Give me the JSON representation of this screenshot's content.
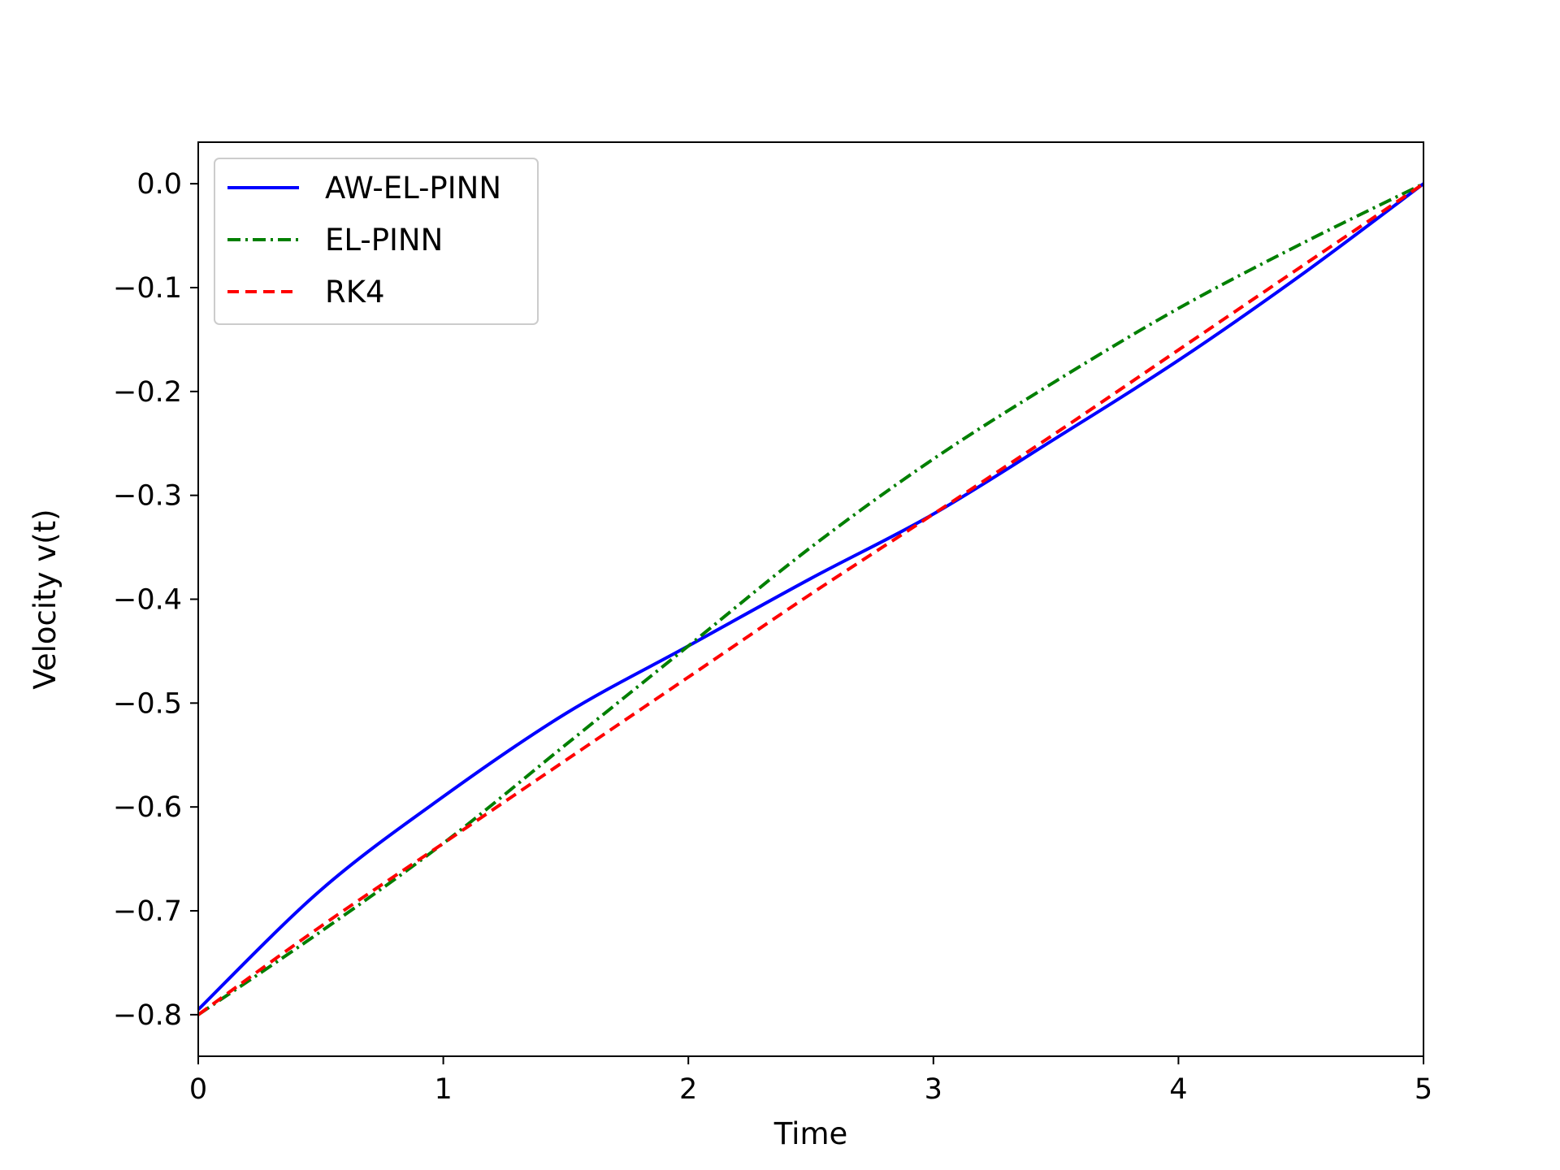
{
  "chart_data": {
    "type": "line",
    "title": "",
    "xlabel": "Time",
    "ylabel": "Velocity v(t)",
    "xlim": [
      0,
      5
    ],
    "ylim": [
      -0.84,
      0.04
    ],
    "grid": false,
    "legend_position": "top-left",
    "xticks": [
      0,
      1,
      2,
      3,
      4,
      5
    ],
    "xtick_labels": [
      "0",
      "1",
      "2",
      "3",
      "4",
      "5"
    ],
    "yticks": [
      0.0,
      -0.1,
      -0.2,
      -0.3,
      -0.4,
      -0.5,
      -0.6,
      -0.7,
      -0.8
    ],
    "ytick_labels": [
      "0.0",
      "−0.1",
      "−0.2",
      "−0.3",
      "−0.4",
      "−0.5",
      "−0.6",
      "−0.7",
      "−0.8"
    ],
    "x": [
      0,
      0.5,
      1,
      1.5,
      2,
      2.5,
      3,
      3.5,
      4,
      4.5,
      5
    ],
    "series": [
      {
        "name": "AW-EL-PINN",
        "color": "#0000ff",
        "style": "solid",
        "values": [
          -0.795,
          -0.68,
          -0.59,
          -0.51,
          -0.445,
          -0.38,
          -0.318,
          -0.245,
          -0.17,
          -0.088,
          0.0
        ]
      },
      {
        "name": "EL-PINN",
        "color": "#007f00",
        "style": "dashdot",
        "values": [
          -0.8,
          -0.72,
          -0.635,
          -0.54,
          -0.445,
          -0.35,
          -0.265,
          -0.19,
          -0.12,
          -0.058,
          0.0
        ]
      },
      {
        "name": "RK4",
        "color": "#ff0000",
        "style": "dashed",
        "values": [
          -0.8,
          -0.715,
          -0.635,
          -0.555,
          -0.475,
          -0.395,
          -0.318,
          -0.24,
          -0.16,
          -0.08,
          0.0
        ]
      }
    ]
  }
}
